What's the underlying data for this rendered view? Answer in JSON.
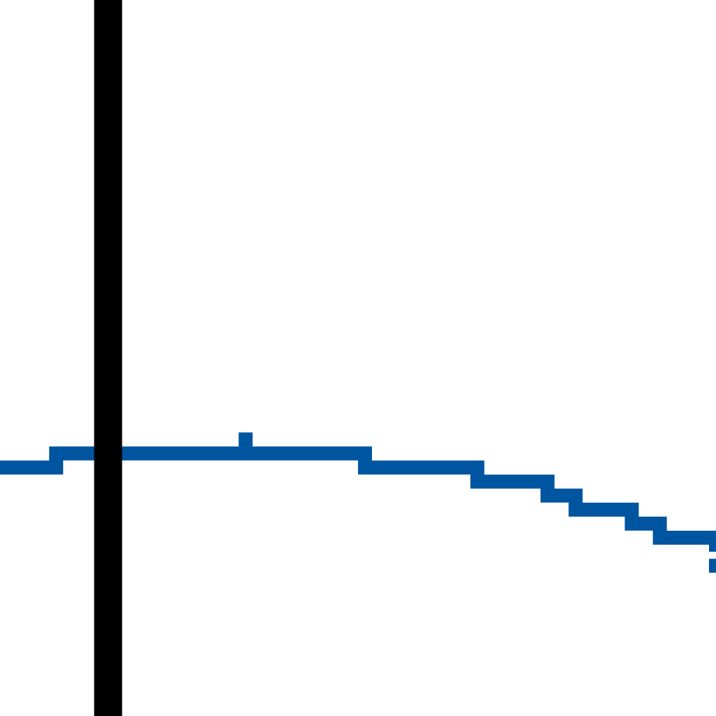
{
  "chart_data": {
    "type": "line",
    "title": "",
    "xlabel": "",
    "ylabel": "",
    "grid": false,
    "legend": "none",
    "xlim": [
      0,
      51
    ],
    "ylim": [
      0,
      51
    ],
    "vertical_rule_x": 7.7,
    "series": [
      {
        "color": "#0055a0",
        "step": "post",
        "x": [
          0,
          4,
          7,
          17,
          18,
          26,
          34,
          39,
          41,
          45,
          47,
          51
        ],
        "y": [
          17.7,
          18.7,
          18.7,
          18.7,
          18.7,
          17.7,
          16.7,
          15.7,
          14.7,
          13.7,
          12.7,
          11.7
        ],
        "markers": [
          {
            "x": 17,
            "y": 19.7
          },
          {
            "x": 50.5,
            "y": 10.7
          }
        ]
      }
    ],
    "colors": {
      "series": "#0055a0",
      "rule": "#000000",
      "background": "#ffffff"
    }
  }
}
